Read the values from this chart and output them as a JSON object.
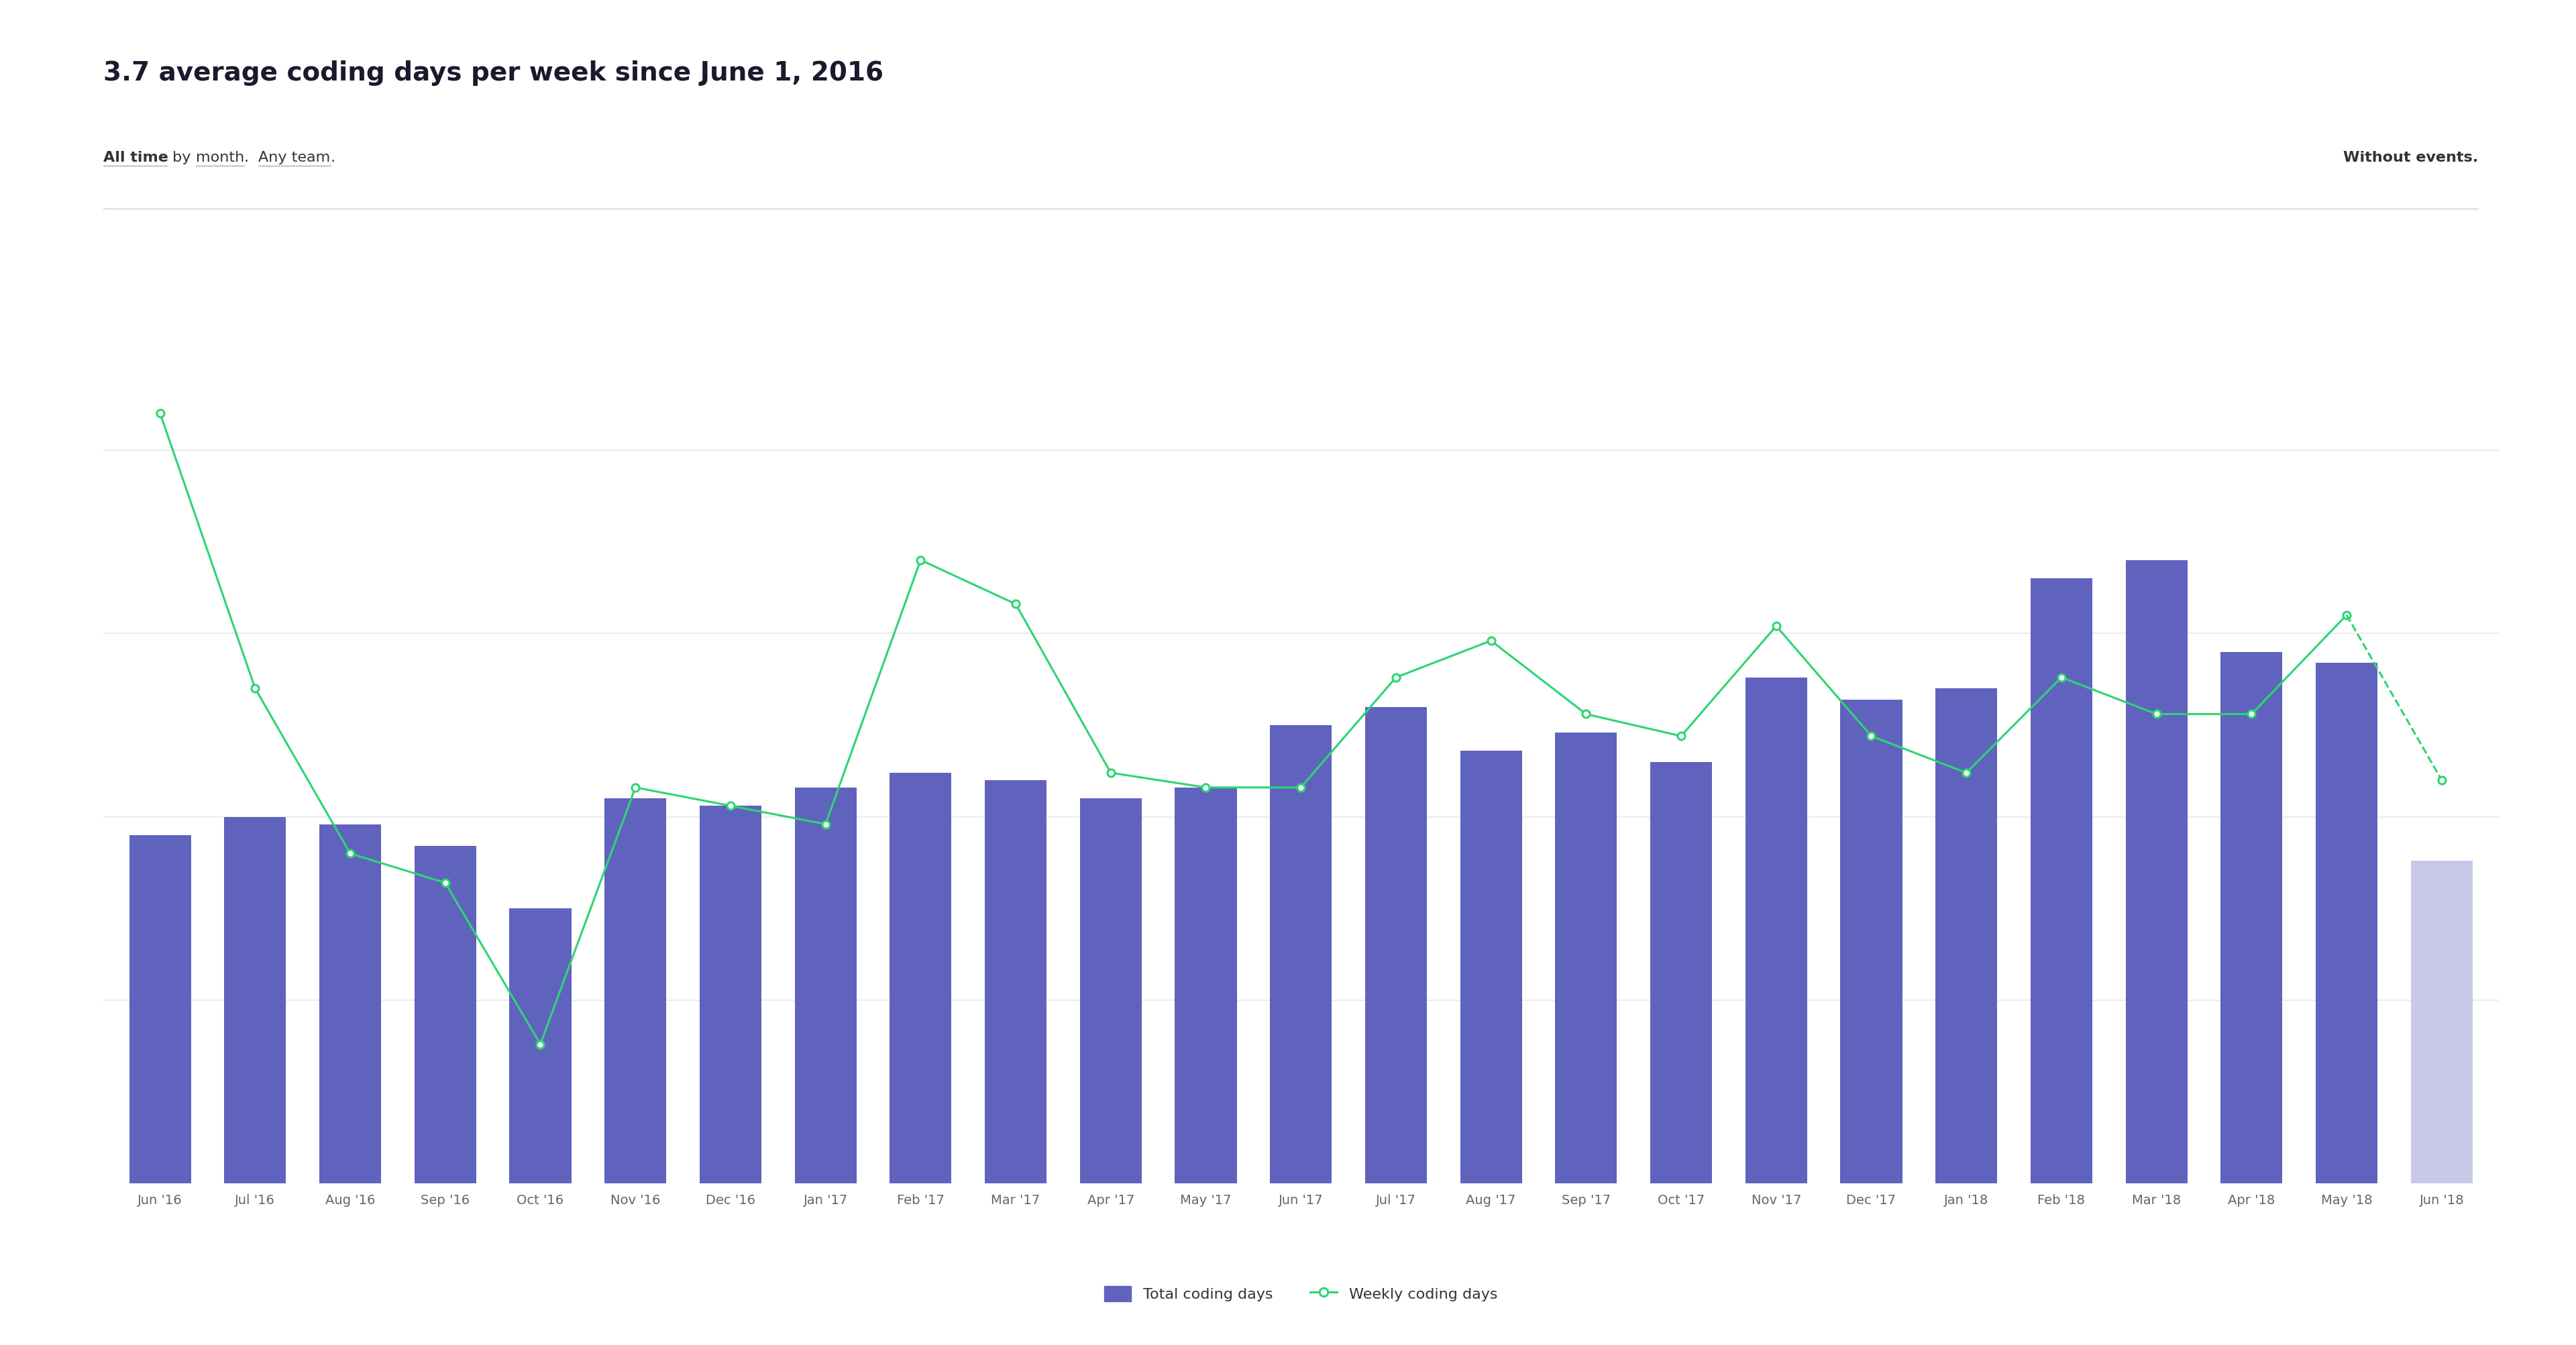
{
  "title": "3.7 average coding days per week since June 1, 2016",
  "subtitle_right": "Without events.",
  "categories": [
    "Jun '16",
    "Jul '16",
    "Aug '16",
    "Sep '16",
    "Oct '16",
    "Nov '16",
    "Dec '16",
    "Jan '17",
    "Feb '17",
    "Mar '17",
    "Apr '17",
    "May '17",
    "Jun '17",
    "Jul '17",
    "Aug '17",
    "Sep '17",
    "Oct '17",
    "Nov '17",
    "Dec '17",
    "Jan '18",
    "Feb '18",
    "Mar '18",
    "Apr '18",
    "May '18",
    "Jun '18"
  ],
  "bar_values": [
    9.5,
    10.0,
    9.8,
    9.2,
    7.5,
    10.5,
    10.3,
    10.8,
    11.2,
    11.0,
    10.5,
    10.8,
    12.5,
    13.0,
    11.8,
    12.3,
    11.5,
    13.8,
    13.2,
    13.5,
    16.5,
    17.0,
    14.5,
    14.2,
    8.8
  ],
  "line_values": [
    21.0,
    13.5,
    9.0,
    8.2,
    3.8,
    10.8,
    10.3,
    9.8,
    17.0,
    15.8,
    11.2,
    10.8,
    10.8,
    13.8,
    14.8,
    12.8,
    12.2,
    15.2,
    12.2,
    11.2,
    13.8,
    12.8,
    12.8,
    15.5,
    11.0
  ],
  "bar_color_normal": "#5f63be",
  "bar_color_last": "#c8c9e8",
  "line_color": "#2ed573",
  "background_color": "#ffffff",
  "grid_color": "#e8e8e8",
  "text_color": "#1a1a2e",
  "subtitle_color": "#333333",
  "legend_label_bar": "Total coding days",
  "legend_label_line": "Weekly coding days",
  "ylim": [
    0,
    22
  ],
  "yticks": [
    5,
    10,
    15,
    20
  ],
  "title_fontsize": 28,
  "subtitle_fontsize": 16,
  "tick_fontsize": 14,
  "legend_fontsize": 16
}
